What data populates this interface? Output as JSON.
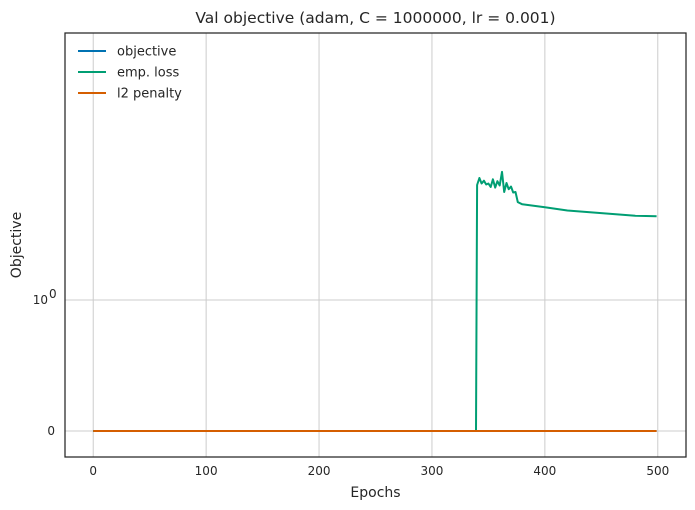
{
  "chart_data": {
    "type": "line",
    "title": "Val objective (adam, C = 1000000, lr = 0.001)",
    "xlabel": "Epochs",
    "ylabel": "Objective",
    "xlim": [
      -25,
      525
    ],
    "x_ticks": [
      0,
      100,
      200,
      300,
      400,
      500
    ],
    "y_scale": "symlog",
    "y_ticks": [
      {
        "value": 0,
        "label": "0"
      },
      {
        "value": 1,
        "label": "10",
        "exponent": "0"
      }
    ],
    "grid": true,
    "legend_position": "top-left",
    "series": [
      {
        "name": "objective",
        "color": "#0072b2",
        "points": [
          [
            0,
            0
          ],
          [
            499,
            0
          ]
        ]
      },
      {
        "name": "emp. loss",
        "color": "#009e73",
        "points": [
          [
            0,
            0
          ],
          [
            339,
            0
          ],
          [
            340,
            10.0
          ],
          [
            342,
            11.5
          ],
          [
            344,
            10.3
          ],
          [
            346,
            10.9
          ],
          [
            348,
            10.1
          ],
          [
            350,
            10.3
          ],
          [
            352,
            9.6
          ],
          [
            354,
            11.2
          ],
          [
            356,
            9.5
          ],
          [
            358,
            10.8
          ],
          [
            360,
            9.9
          ],
          [
            362,
            13.0
          ],
          [
            364,
            8.7
          ],
          [
            366,
            10.4
          ],
          [
            368,
            9.2
          ],
          [
            370,
            9.7
          ],
          [
            372,
            8.6
          ],
          [
            374,
            8.7
          ],
          [
            376,
            7.1
          ],
          [
            380,
            6.8
          ],
          [
            400,
            6.4
          ],
          [
            420,
            6.0
          ],
          [
            440,
            5.8
          ],
          [
            460,
            5.6
          ],
          [
            480,
            5.4
          ],
          [
            499,
            5.35
          ]
        ]
      },
      {
        "name": "l2 penalty",
        "color": "#d55e00",
        "points": [
          [
            0,
            0
          ],
          [
            499,
            0
          ]
        ]
      }
    ]
  }
}
